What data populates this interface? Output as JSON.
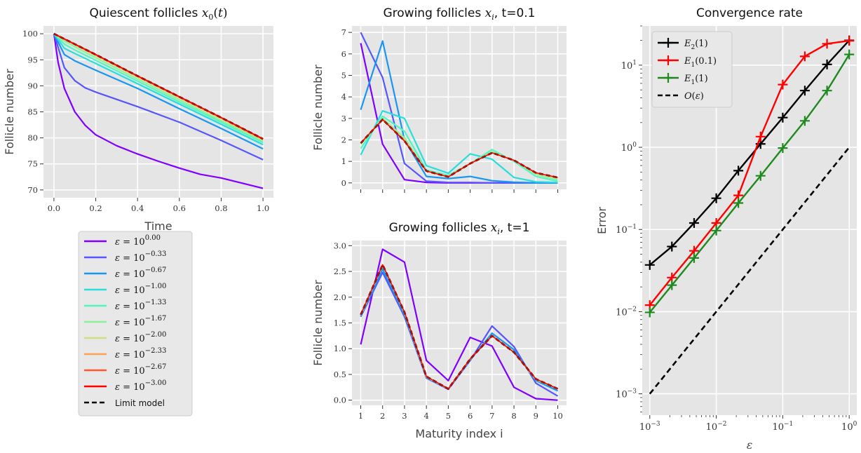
{
  "chart_data": [
    {
      "id": "quiescent",
      "type": "line",
      "title_text": "Quiescent follicles",
      "title_math": "x0(t)",
      "xlabel": "Time",
      "ylabel": "Follicle number",
      "xlim": [
        -0.05,
        1.05
      ],
      "ylim": [
        68.5,
        101.5
      ],
      "xticks": [
        0.0,
        0.2,
        0.4,
        0.6,
        0.8,
        1.0
      ],
      "xticklabels": [
        "0.0",
        "0.2",
        "0.4",
        "0.6",
        "0.8",
        "1.0"
      ],
      "yticks": [
        70,
        75,
        80,
        85,
        90,
        95,
        100
      ],
      "yticklabels": [
        "70",
        "75",
        "80",
        "85",
        "90",
        "95",
        "100"
      ],
      "grid": true,
      "series": [
        {
          "color": "#8000ff",
          "width": 2.2,
          "dash": "",
          "x": [
            0,
            0.02,
            0.05,
            0.1,
            0.15,
            0.2,
            0.3,
            0.4,
            0.5,
            0.6,
            0.7,
            0.8,
            0.9,
            1.0
          ],
          "y": [
            100,
            94.5,
            89.5,
            85.0,
            82.4,
            80.6,
            78.5,
            76.9,
            75.5,
            74.2,
            73.0,
            72.3,
            71.3,
            70.3
          ]
        },
        {
          "color": "#5656ff",
          "width": 2.2,
          "dash": "",
          "x": [
            0,
            0.05,
            0.1,
            0.15,
            0.2,
            0.4,
            0.6,
            0.8,
            1.0
          ],
          "y": [
            100,
            93.5,
            91.0,
            89.6,
            88.8,
            86.0,
            83.0,
            79.5,
            75.8
          ]
        },
        {
          "color": "#1996f3",
          "width": 2.2,
          "dash": "",
          "x": [
            0,
            0.05,
            0.1,
            0.2,
            0.4,
            0.6,
            0.8,
            1.0
          ],
          "y": [
            100,
            96.0,
            94.8,
            93.0,
            89.5,
            85.6,
            81.8,
            77.9
          ]
        },
        {
          "color": "#2adddd",
          "width": 2.2,
          "dash": "",
          "x": [
            0,
            0.05,
            0.1,
            0.2,
            0.4,
            0.6,
            0.8,
            1.0
          ],
          "y": [
            100,
            97.2,
            96.2,
            94.3,
            90.4,
            86.5,
            82.6,
            78.7
          ]
        },
        {
          "color": "#56f5c0",
          "width": 2.2,
          "dash": "",
          "x": [
            0,
            0.05,
            0.1,
            0.2,
            0.4,
            0.6,
            0.8,
            1.0
          ],
          "y": [
            100,
            98.0,
            96.9,
            94.9,
            90.9,
            86.9,
            83.0,
            79.1
          ]
        },
        {
          "color": "#8ff09c",
          "width": 2.2,
          "dash": "",
          "x": [
            0,
            0.05,
            0.1,
            0.2,
            0.4,
            0.6,
            0.8,
            1.0
          ],
          "y": [
            100,
            98.6,
            97.5,
            95.4,
            91.3,
            87.3,
            83.3,
            79.4
          ]
        },
        {
          "color": "#d4dd80",
          "width": 2.2,
          "dash": "",
          "x": [
            0,
            0.2,
            0.4,
            0.6,
            0.8,
            1.0
          ],
          "y": [
            100,
            95.8,
            91.7,
            87.7,
            83.7,
            79.6
          ]
        },
        {
          "color": "#ffa256",
          "width": 2.2,
          "dash": "",
          "x": [
            0,
            0.2,
            0.4,
            0.6,
            0.8,
            1.0
          ],
          "y": [
            100,
            95.9,
            91.8,
            87.8,
            83.8,
            79.7
          ]
        },
        {
          "color": "#ff5a2e",
          "width": 2.2,
          "dash": "",
          "x": [
            0,
            0.2,
            0.4,
            0.6,
            0.8,
            1.0
          ],
          "y": [
            100,
            96.0,
            91.9,
            87.9,
            83.9,
            79.8
          ]
        },
        {
          "color": "#000000",
          "width": 2.6,
          "dash": "6,4",
          "x": [
            0,
            0.2,
            0.4,
            0.6,
            0.8,
            1.0
          ],
          "y": [
            100,
            96.0,
            91.9,
            87.9,
            83.9,
            79.8
          ]
        },
        {
          "color": "#ff0000",
          "width": 1.6,
          "dash": "",
          "x": [
            0,
            0.2,
            0.4,
            0.6,
            0.8,
            1.0
          ],
          "y": [
            100,
            96.0,
            91.9,
            87.9,
            83.9,
            79.8
          ]
        }
      ]
    },
    {
      "id": "growing_t01",
      "type": "line",
      "title_text": "Growing follicles",
      "title_math": "xi",
      "title_suffix": ", t=0.1",
      "xlabel": "",
      "ylabel": "Follicle number",
      "xlim": [
        0.6,
        10.4
      ],
      "ylim": [
        -0.3,
        7.3
      ],
      "xticks": [
        1,
        2,
        3,
        4,
        5,
        6,
        7,
        8,
        9,
        10
      ],
      "xticklabels": [],
      "yticks": [
        0,
        1,
        2,
        3,
        4,
        5,
        6,
        7
      ],
      "yticklabels": [
        "0",
        "1",
        "2",
        "3",
        "4",
        "5",
        "6",
        "7"
      ],
      "grid": true,
      "series": [
        {
          "color": "#8000ff",
          "width": 2.2,
          "dash": "",
          "x": [
            1,
            2,
            3,
            4,
            5,
            6,
            7,
            8,
            9,
            10
          ],
          "y": [
            6.5,
            1.8,
            0.15,
            0.02,
            0.0,
            0.0,
            0.0,
            0.0,
            0.0,
            0.0
          ]
        },
        {
          "color": "#5656ff",
          "width": 2.2,
          "dash": "",
          "x": [
            1,
            2,
            3,
            4,
            5,
            6,
            7,
            8,
            9,
            10
          ],
          "y": [
            7.0,
            4.9,
            0.9,
            0.08,
            0.02,
            0.02,
            0.0,
            0.0,
            0.0,
            0.0
          ]
        },
        {
          "color": "#1996f3",
          "width": 2.2,
          "dash": "",
          "x": [
            1,
            2,
            3,
            4,
            5,
            6,
            7,
            8,
            9,
            10
          ],
          "y": [
            3.4,
            6.6,
            2.0,
            0.3,
            0.2,
            0.3,
            0.1,
            0.03,
            0.0,
            0.0
          ]
        },
        {
          "color": "#2adddd",
          "width": 2.2,
          "dash": "",
          "x": [
            1,
            2,
            3,
            4,
            5,
            6,
            7,
            8,
            9,
            10
          ],
          "y": [
            1.3,
            3.35,
            3.0,
            0.8,
            0.45,
            1.35,
            1.1,
            0.25,
            0.05,
            0.02
          ]
        },
        {
          "color": "#56f5c0",
          "width": 2.2,
          "dash": "",
          "x": [
            1,
            2,
            3,
            4,
            5,
            6,
            7,
            8,
            9,
            10
          ],
          "y": [
            1.6,
            3.1,
            2.4,
            0.6,
            0.35,
            0.9,
            1.55,
            1.0,
            0.3,
            0.08
          ]
        },
        {
          "color": "#8ff09c",
          "width": 2.2,
          "dash": "",
          "x": [
            1,
            2,
            3,
            4,
            5,
            6,
            7,
            8,
            9,
            10
          ],
          "y": [
            1.8,
            3.0,
            2.1,
            0.55,
            0.3,
            0.9,
            1.45,
            1.05,
            0.4,
            0.15
          ]
        },
        {
          "color": "#d4dd80",
          "width": 2.2,
          "dash": "",
          "x": [
            1,
            2,
            3,
            4,
            5,
            6,
            7,
            8,
            9,
            10
          ],
          "y": [
            1.85,
            2.95,
            2.0,
            0.55,
            0.28,
            0.9,
            1.4,
            1.05,
            0.45,
            0.22
          ]
        },
        {
          "color": "#000000",
          "width": 2.6,
          "dash": "6,4",
          "x": [
            1,
            2,
            3,
            4,
            5,
            6,
            7,
            8,
            9,
            10
          ],
          "y": [
            1.85,
            2.95,
            1.95,
            0.55,
            0.28,
            0.9,
            1.4,
            1.05,
            0.47,
            0.25
          ]
        },
        {
          "color": "#ff0000",
          "width": 1.6,
          "dash": "",
          "x": [
            1,
            2,
            3,
            4,
            5,
            6,
            7,
            8,
            9,
            10
          ],
          "y": [
            1.85,
            2.95,
            1.95,
            0.55,
            0.28,
            0.9,
            1.4,
            1.05,
            0.47,
            0.25
          ]
        }
      ]
    },
    {
      "id": "growing_t1",
      "type": "line",
      "title_text": "Growing follicles",
      "title_math": "xi",
      "title_suffix": ", t=1",
      "xlabel": "Maturity index i",
      "ylabel": "Follicle number",
      "xlim": [
        0.6,
        10.4
      ],
      "ylim": [
        -0.1,
        3.1
      ],
      "xticks": [
        1,
        2,
        3,
        4,
        5,
        6,
        7,
        8,
        9,
        10
      ],
      "xticklabels": [
        "1",
        "2",
        "3",
        "4",
        "5",
        "6",
        "7",
        "8",
        "9",
        "10"
      ],
      "yticks": [
        0.0,
        0.5,
        1.0,
        1.5,
        2.0,
        2.5,
        3.0
      ],
      "yticklabels": [
        "0.0",
        "0.5",
        "1.0",
        "1.5",
        "2.0",
        "2.5",
        "3.0"
      ],
      "grid": true,
      "series": [
        {
          "color": "#8000ff",
          "width": 2.2,
          "dash": "",
          "x": [
            1,
            2,
            3,
            4,
            5,
            6,
            7,
            8,
            9,
            10
          ],
          "y": [
            1.08,
            2.93,
            2.68,
            0.77,
            0.38,
            1.22,
            1.05,
            0.25,
            0.03,
            0.0
          ]
        },
        {
          "color": "#5656ff",
          "width": 2.2,
          "dash": "",
          "x": [
            1,
            2,
            3,
            4,
            5,
            6,
            7,
            8,
            9,
            10
          ],
          "y": [
            1.62,
            2.48,
            1.62,
            0.43,
            0.21,
            0.77,
            1.44,
            1.04,
            0.33,
            0.08
          ]
        },
        {
          "color": "#1996f3",
          "width": 2.2,
          "dash": "",
          "x": [
            1,
            2,
            3,
            4,
            5,
            6,
            7,
            8,
            9,
            10
          ],
          "y": [
            1.63,
            2.55,
            1.66,
            0.44,
            0.22,
            0.78,
            1.3,
            0.98,
            0.38,
            0.18
          ]
        },
        {
          "color": "#8ff09c",
          "width": 2.2,
          "dash": "",
          "x": [
            1,
            2,
            3,
            4,
            5,
            6,
            7,
            8,
            9,
            10
          ],
          "y": [
            1.65,
            2.62,
            1.7,
            0.45,
            0.22,
            0.8,
            1.25,
            0.93,
            0.4,
            0.22
          ]
        },
        {
          "color": "#000000",
          "width": 2.6,
          "dash": "6,4",
          "x": [
            1,
            2,
            3,
            4,
            5,
            6,
            7,
            8,
            9,
            10
          ],
          "y": [
            1.66,
            2.63,
            1.71,
            0.46,
            0.22,
            0.8,
            1.25,
            0.93,
            0.41,
            0.22
          ]
        },
        {
          "color": "#ff0000",
          "width": 1.6,
          "dash": "",
          "x": [
            1,
            2,
            3,
            4,
            5,
            6,
            7,
            8,
            9,
            10
          ],
          "y": [
            1.66,
            2.63,
            1.71,
            0.46,
            0.22,
            0.8,
            1.25,
            0.93,
            0.41,
            0.22
          ]
        }
      ]
    },
    {
      "id": "convergence",
      "type": "line",
      "title_text": "Convergence rate",
      "xlabel": "ε",
      "ylabel": "Error",
      "xscale": "log",
      "yscale": "log",
      "xlim": [
        0.00077,
        1.3
      ],
      "ylim": [
        0.00055,
        30
      ],
      "xticks": [
        0.001,
        0.01,
        0.1,
        1
      ],
      "xtick_exponents": [
        "−3",
        "−2",
        "−1",
        "0"
      ],
      "yticks": [
        0.001,
        0.01,
        0.1,
        1,
        10
      ],
      "ytick_exponents": [
        "−3",
        "−2",
        "−1",
        "0",
        "1"
      ],
      "grid": true,
      "legend_location": "top-left",
      "series": [
        {
          "name": "E2(1)",
          "color": "#000000",
          "marker": "+",
          "width": 2.4,
          "dash": "",
          "x": [
            0.001,
            0.00215,
            0.00464,
            0.01,
            0.0215,
            0.0464,
            0.1,
            0.215,
            0.464,
            1.0
          ],
          "y": [
            0.037,
            0.062,
            0.12,
            0.24,
            0.52,
            1.1,
            2.3,
            4.9,
            10.2,
            20.0
          ]
        },
        {
          "name": "E1(0.1)",
          "color": "#ff0000",
          "marker": "+",
          "width": 2.4,
          "dash": "",
          "x": [
            0.001,
            0.00215,
            0.00464,
            0.01,
            0.0215,
            0.0464,
            0.1,
            0.215,
            0.464,
            1.0
          ],
          "y": [
            0.012,
            0.026,
            0.055,
            0.12,
            0.26,
            1.35,
            5.8,
            12.8,
            18.2,
            19.8
          ]
        },
        {
          "name": "E1(1)",
          "color": "#1e8a1e",
          "marker": "+",
          "width": 2.4,
          "dash": "",
          "x": [
            0.001,
            0.00215,
            0.00464,
            0.01,
            0.0215,
            0.0464,
            0.1,
            0.215,
            0.464,
            1.0
          ],
          "y": [
            0.0098,
            0.021,
            0.045,
            0.097,
            0.21,
            0.45,
            0.98,
            2.1,
            4.9,
            13.5
          ]
        },
        {
          "name": "O(ε)",
          "color": "#000000",
          "marker": "",
          "width": 2.6,
          "dash": "8,5",
          "x": [
            0.001,
            1.0
          ],
          "y": [
            0.001,
            1.0
          ]
        }
      ]
    }
  ],
  "legend_quiescent": {
    "entries": [
      {
        "exponent": "0.00",
        "color": "#8000ff"
      },
      {
        "exponent": "−0.33",
        "color": "#5656ff"
      },
      {
        "exponent": "−0.67",
        "color": "#1996f3"
      },
      {
        "exponent": "−1.00",
        "color": "#2adddd"
      },
      {
        "exponent": "−1.33",
        "color": "#56f5c0"
      },
      {
        "exponent": "−1.67",
        "color": "#8ff09c"
      },
      {
        "exponent": "−2.00",
        "color": "#d4dd80"
      },
      {
        "exponent": "−2.33",
        "color": "#ffa256"
      },
      {
        "exponent": "−2.67",
        "color": "#ff5a2e"
      },
      {
        "exponent": "−3.00",
        "color": "#ff0000"
      }
    ],
    "limit_label": "Limit model"
  },
  "colors": {
    "panel_bg": "#e5e5e5",
    "grid": "#ffffff"
  }
}
